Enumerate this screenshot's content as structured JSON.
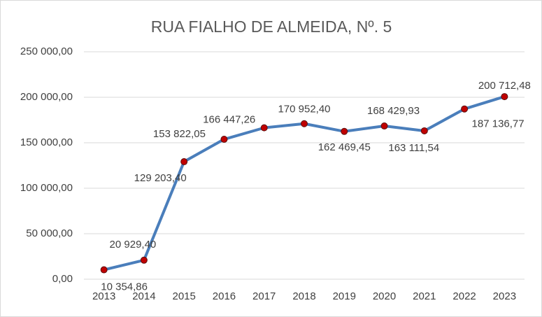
{
  "chart_data": {
    "type": "line",
    "title": "RUA FIALHO DE ALMEIDA, Nº. 5",
    "categories": [
      "2013",
      "2014",
      "2015",
      "2016",
      "2017",
      "2018",
      "2019",
      "2020",
      "2021",
      "2022",
      "2023"
    ],
    "series": [
      {
        "color": "#4a7ebb",
        "marker_color": "#c00000",
        "values": [
          10354.86,
          20929.4,
          129203.4,
          153822.05,
          166447.26,
          170952.4,
          162469.45,
          168429.93,
          163111.54,
          187136.77,
          200712.48
        ],
        "value_labels": [
          "10 354,86",
          "20 929,40",
          "129 203,40",
          "153 822,05",
          "166 447,26",
          "170 952,40",
          "162 469,45",
          "168 429,93",
          "163 111,54",
          "187 136,77",
          "200 712,48"
        ]
      }
    ],
    "ylim": [
      0,
      250000
    ],
    "yticks": [
      {
        "value": 0,
        "label": "0,00"
      },
      {
        "value": 50000,
        "label": "50 000,00"
      },
      {
        "value": 100000,
        "label": "100 000,00"
      },
      {
        "value": 150000,
        "label": "150 000,00"
      },
      {
        "value": 200000,
        "label": "200 000,00"
      },
      {
        "value": 250000,
        "label": "250 000,00"
      }
    ],
    "grid": true
  }
}
